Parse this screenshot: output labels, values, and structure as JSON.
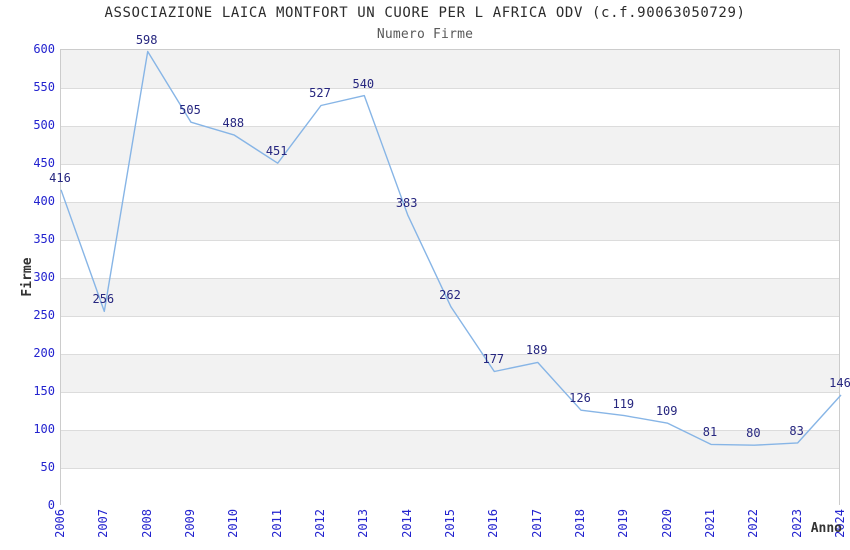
{
  "title": "ASSOCIAZIONE LAICA MONTFORT UN CUORE PER L AFRICA ODV (c.f.90063050729)",
  "subtitle": "Numero Firme",
  "chart_data": {
    "type": "line",
    "title": "ASSOCIAZIONE LAICA MONTFORT UN CUORE PER L AFRICA ODV (c.f.90063050729)",
    "subtitle": "Numero Firme",
    "xlabel": "Anno",
    "ylabel": "Firme",
    "categories": [
      "2006",
      "2007",
      "2008",
      "2009",
      "2010",
      "2011",
      "2012",
      "2013",
      "2014",
      "2015",
      "2016",
      "2017",
      "2018",
      "2019",
      "2020",
      "2021",
      "2022",
      "2023",
      "2024"
    ],
    "values": [
      416,
      256,
      598,
      505,
      488,
      451,
      527,
      540,
      383,
      262,
      177,
      189,
      126,
      119,
      109,
      81,
      80,
      83,
      146
    ],
    "ylim": [
      0,
      600
    ],
    "ytick_step": 50,
    "yticks": [
      0,
      50,
      100,
      150,
      200,
      250,
      300,
      350,
      400,
      450,
      500,
      550,
      600
    ],
    "grid": true,
    "legend_position": "none",
    "point_labels_visible": true
  },
  "colors": {
    "line": "#87b5e6",
    "tick_label": "#2323cf",
    "data_label": "#26267f",
    "band_alt": "#f2f2f2",
    "band_base": "#ffffff",
    "grid": "#dcdcdc",
    "plot_border": "#cccccc",
    "title": "#2b2b2b",
    "subtitle": "#595959",
    "axis_title": "#333333",
    "background": "#ffffff"
  }
}
